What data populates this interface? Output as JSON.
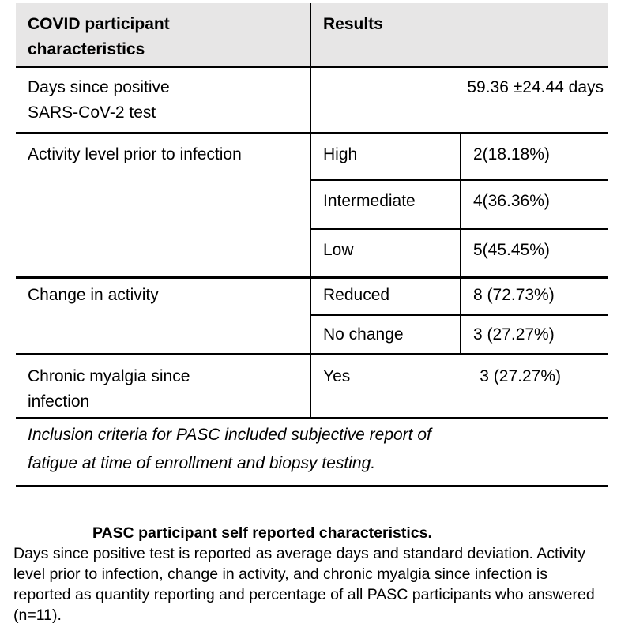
{
  "table": {
    "header": {
      "characteristics_lines": [
        "COVID participant",
        "characteristics"
      ],
      "results": "Results"
    },
    "days": {
      "label_lines": [
        "Days since positive",
        "SARS-CoV-2 test"
      ],
      "value": "59.36 ±24.44 days"
    },
    "activity": {
      "label": "Activity level prior to infection",
      "rows": [
        {
          "level": "High",
          "count": "2(18.18%)"
        },
        {
          "level": "Intermediate",
          "count": "4(36.36%)"
        },
        {
          "level": "Low",
          "count": "5(45.45%)"
        }
      ]
    },
    "change": {
      "label": "Change in activity",
      "rows": [
        {
          "level": "Reduced",
          "count": "8 (72.73%)"
        },
        {
          "level": "No change",
          "count": "3 (27.27%)"
        }
      ]
    },
    "myalgia": {
      "label_lines": [
        "Chronic myalgia since",
        "infection"
      ],
      "level": "Yes",
      "count": "3 (27.27%)"
    },
    "note_lines": [
      "Inclusion criteria for PASC included subjective report of",
      "fatigue at time of enrollment and biopsy testing."
    ]
  },
  "caption": {
    "title": "PASC participant self reported characteristics.",
    "body": "Days since positive test is reported as average days and standard deviation. Activity level prior to infection, change in activity, and chronic myalgia since infection is reported as quantity reporting and percentage of all PASC participants who answered (n=11)."
  },
  "colors": {
    "header_bg": "#e7e6e6",
    "border": "#000000",
    "text": "#000000"
  }
}
